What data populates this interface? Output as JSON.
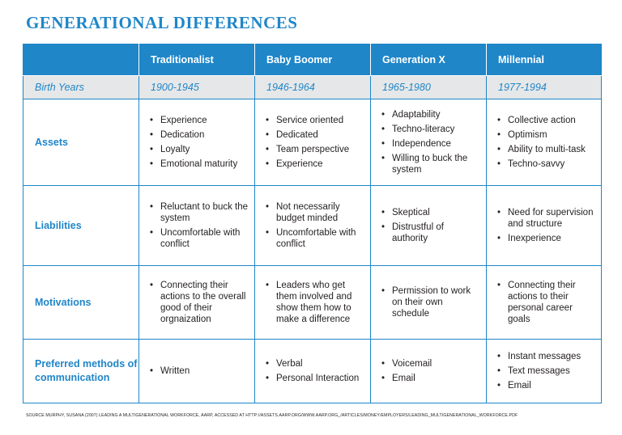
{
  "title": "GENERATIONAL DIFFERENCES",
  "headers": [
    "",
    "Traditionalist",
    "Baby Boomer",
    "Generation X",
    "Millennial"
  ],
  "birth_years": {
    "label": "Birth Years",
    "values": [
      "1900-1945",
      "1946-1964",
      "1965-1980",
      "1977-1994"
    ]
  },
  "rows": [
    {
      "label": "Assets",
      "cells": [
        [
          "Experience",
          "Dedication",
          "Loyalty",
          "Emotional maturity"
        ],
        [
          "Service oriented",
          "Dedicated",
          "Team perspective",
          "Experience"
        ],
        [
          "Adaptability",
          "Techno-literacy",
          "Independence",
          "Willing to buck the system"
        ],
        [
          "Collective action",
          "Optimism",
          "Ability to multi-task",
          "Techno-savvy"
        ]
      ]
    },
    {
      "label": "Liabilities",
      "cells": [
        [
          "Reluctant to buck the system",
          "Uncomfortable with conflict"
        ],
        [
          "Not necessarily budget minded",
          "Uncomfortable with conflict"
        ],
        [
          "Skeptical",
          "Distrustful of authority"
        ],
        [
          "Need for supervision and structure",
          "Inexperience"
        ]
      ]
    },
    {
      "label": "Motivations",
      "cells": [
        [
          "Connecting their actions to the overall good of their orgnaization"
        ],
        [
          "Leaders who get them involved and show them how to make a difference"
        ],
        [
          "Permission to work on their own schedule"
        ],
        [
          "Connecting their actions to their personal career goals"
        ]
      ]
    },
    {
      "label": "Preferred methods of communication",
      "cells": [
        [
          "Written"
        ],
        [
          "Verbal",
          "Personal Interaction"
        ],
        [
          "Voicemail",
          "Email"
        ],
        [
          "Instant messages",
          "Text messages",
          "Email"
        ]
      ]
    }
  ],
  "source": "SOURCE MURPHY, SUSANA (2007) LEADING A MULTIGENERATIONAL WORKFORCE, AARP, ACCESSED AT HTTP://ASSETS.AARP.ORG/WWW.AARP.ORG_/ARTICLES/MONEY/EMPLOYERS/LEADING_MULTIGENERATIONAL_WORKFORCE.PDF",
  "colors": {
    "accent": "#1f86c8",
    "row_shade": "#e6e7e8",
    "text": "#231f20"
  }
}
